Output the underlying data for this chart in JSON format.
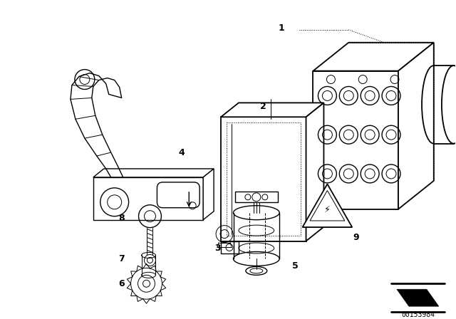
{
  "bg_color": "#ffffff",
  "line_color": "#000000",
  "fig_width": 6.4,
  "fig_height": 4.48,
  "dpi": 100,
  "watermark_text": "00153984"
}
